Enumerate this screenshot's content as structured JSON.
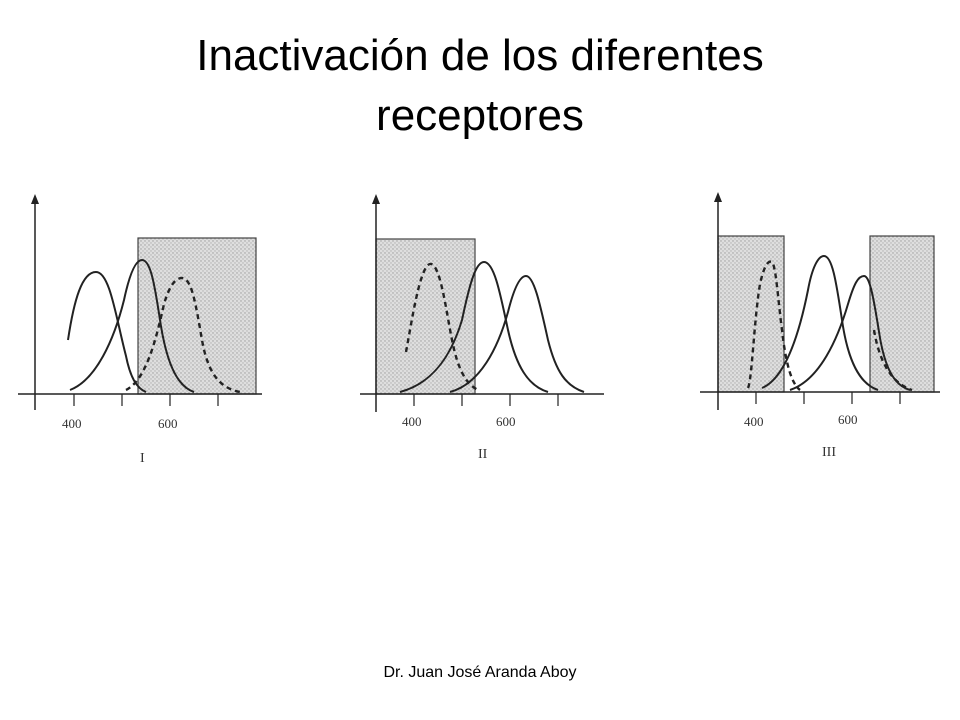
{
  "slide": {
    "title_line1": "Inactivación de los diferentes",
    "title_line2": "receptores",
    "footer": "Dr. Juan José Aranda Aboy"
  },
  "colors": {
    "shade": "#d4d4d4",
    "ink": "#222222"
  },
  "panels": [
    {
      "label": "I",
      "ticks": [
        "400",
        "600"
      ],
      "shaded_range": "~500 nm and above",
      "inactivated_curve": "long-wavelength (dashed)"
    },
    {
      "label": "II",
      "ticks": [
        "400",
        "600"
      ],
      "shaded_range": "up to ~500 nm",
      "inactivated_curve": "short-wavelength (dashed)"
    },
    {
      "label": "III",
      "ticks": [
        "400",
        "600"
      ],
      "shaded_range": "below ~450 nm and above ~640 nm",
      "inactivated_curve": "short-wavelength (dashed)"
    }
  ]
}
